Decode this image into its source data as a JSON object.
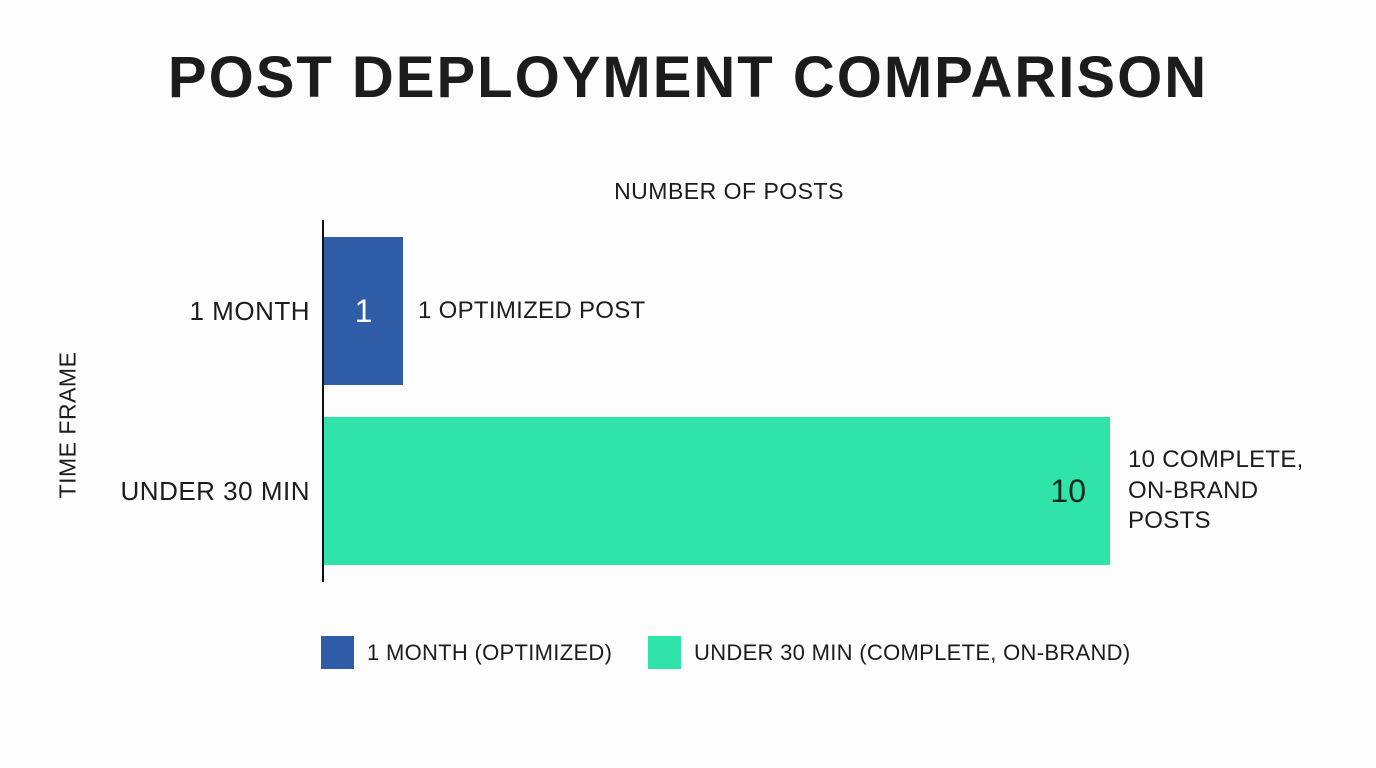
{
  "chart_data": {
    "type": "bar",
    "orientation": "horizontal",
    "title": "POST DEPLOYMENT COMPARISON",
    "xlabel": "NUMBER OF POSTS",
    "ylabel": "TIME FRAME",
    "categories": [
      "1 MONTH",
      "UNDER 30 MIN"
    ],
    "values": [
      1,
      10
    ],
    "bar_colors": [
      "#2e5ca6",
      "#2fe3a9"
    ],
    "annotations": [
      "1 OPTIMIZED POST",
      "10 COMPLETE, ON-BRAND POSTS"
    ],
    "xlim": [
      0,
      10
    ],
    "grid": false,
    "legend_position": "bottom",
    "legend": [
      {
        "label": "1 MONTH (OPTIMIZED)",
        "color": "#2e5ca6"
      },
      {
        "label": "UNDER 30 MIN (COMPLETE, ON-BRAND)",
        "color": "#2fe3a9"
      }
    ],
    "colors": {
      "background": "#fdfdfd",
      "text": "#1c1c1c",
      "axis_line": "#111111",
      "value_text_on_blue_bar": "#ffffff",
      "value_text_on_green_bar": "#102620"
    }
  }
}
